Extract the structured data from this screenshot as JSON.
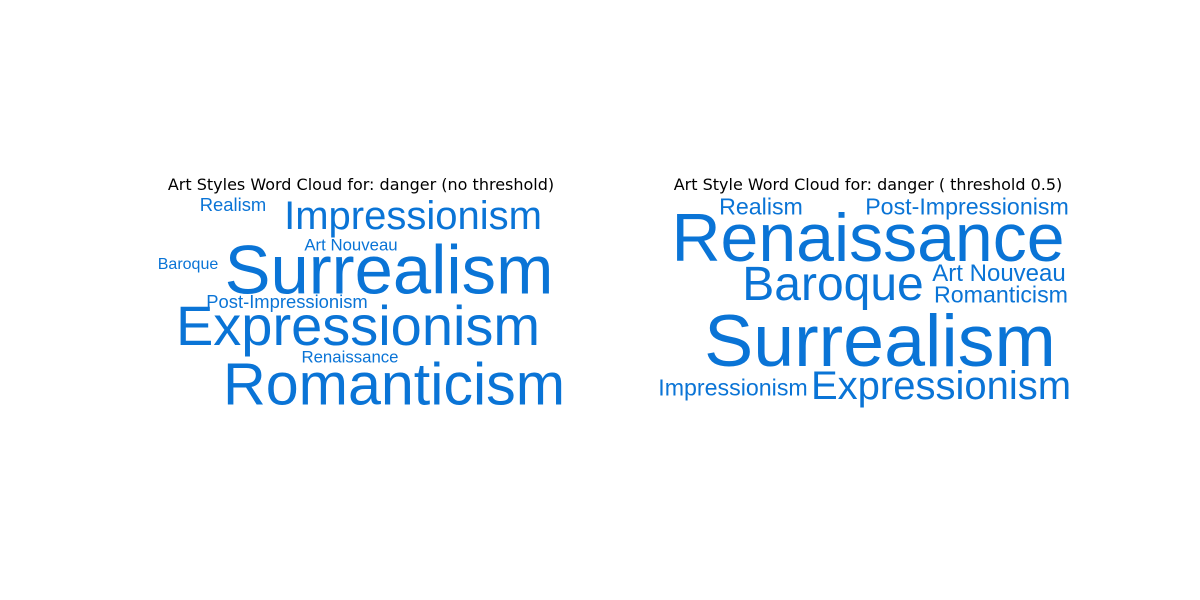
{
  "chart_data": [
    {
      "type": "wordcloud",
      "title": "Art Styles Word Cloud for: danger (no threshold)",
      "color": "#0a74d6",
      "words": [
        {
          "text": "Realism",
          "weight": 0.23
        },
        {
          "text": "Impressionism",
          "weight": 0.5
        },
        {
          "text": "Art Nouveau",
          "weight": 0.21
        },
        {
          "text": "Baroque",
          "weight": 0.2
        },
        {
          "text": "Surrealism",
          "weight": 0.86
        },
        {
          "text": "Post-Impressionism",
          "weight": 0.23
        },
        {
          "text": "Expressionism",
          "weight": 0.7
        },
        {
          "text": "Renaissance",
          "weight": 0.21
        },
        {
          "text": "Romanticism",
          "weight": 0.74
        }
      ]
    },
    {
      "type": "wordcloud",
      "title": "Art Style Word Cloud for: danger ( threshold 0.5)",
      "color": "#0a74d6",
      "words": [
        {
          "text": "Realism",
          "weight": 0.29
        },
        {
          "text": "Post-Impressionism",
          "weight": 0.29
        },
        {
          "text": "Renaissance",
          "weight": 0.85
        },
        {
          "text": "Baroque",
          "weight": 0.6
        },
        {
          "text": "Art Nouveau",
          "weight": 0.3
        },
        {
          "text": "Romanticism",
          "weight": 0.29
        },
        {
          "text": "Surrealism",
          "weight": 0.92
        },
        {
          "text": "Impressionism",
          "weight": 0.29
        },
        {
          "text": "Expressionism",
          "weight": 0.5
        }
      ]
    }
  ]
}
